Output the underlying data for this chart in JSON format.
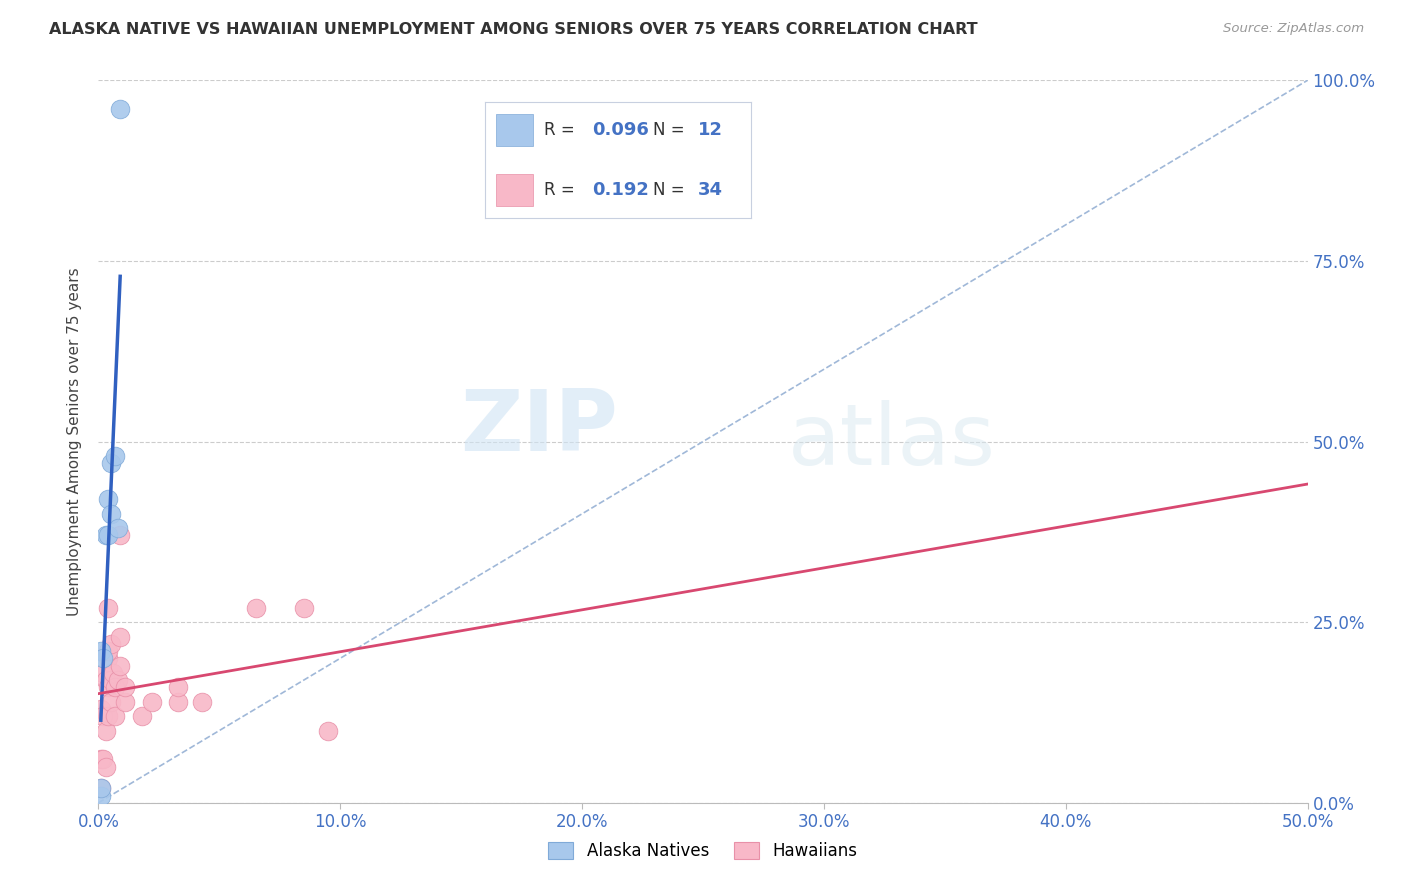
{
  "title": "ALASKA NATIVE VS HAWAIIAN UNEMPLOYMENT AMONG SENIORS OVER 75 YEARS CORRELATION CHART",
  "source": "Source: ZipAtlas.com",
  "ylabel": "Unemployment Among Seniors over 75 years",
  "xlim": [
    0.0,
    0.5
  ],
  "ylim": [
    0.0,
    1.0
  ],
  "xticks": [
    0.0,
    0.1,
    0.2,
    0.3,
    0.4,
    0.5
  ],
  "yticks": [
    0.0,
    0.25,
    0.5,
    0.75,
    1.0
  ],
  "diagonal_color": "#a0b8d8",
  "alaska_natives": {
    "R": 0.096,
    "N": 12,
    "scatter_color": "#a8c8ec",
    "edge_color": "#80aad8",
    "trend_color": "#3060c0",
    "points_x": [
      0.001,
      0.001,
      0.001,
      0.002,
      0.003,
      0.004,
      0.004,
      0.005,
      0.005,
      0.007,
      0.008,
      0.009
    ],
    "points_y": [
      0.01,
      0.02,
      0.21,
      0.2,
      0.37,
      0.37,
      0.42,
      0.4,
      0.47,
      0.48,
      0.38,
      0.96
    ]
  },
  "hawaiians": {
    "R": 0.192,
    "N": 34,
    "scatter_color": "#f8b8c8",
    "edge_color": "#e890a8",
    "trend_color": "#d84870",
    "points_x": [
      0.001,
      0.001,
      0.001,
      0.002,
      0.002,
      0.002,
      0.003,
      0.003,
      0.003,
      0.004,
      0.004,
      0.004,
      0.004,
      0.004,
      0.005,
      0.005,
      0.005,
      0.006,
      0.007,
      0.007,
      0.008,
      0.009,
      0.009,
      0.009,
      0.011,
      0.011,
      0.018,
      0.022,
      0.033,
      0.033,
      0.043,
      0.065,
      0.085,
      0.095
    ],
    "points_y": [
      0.02,
      0.06,
      0.13,
      0.06,
      0.12,
      0.18,
      0.05,
      0.1,
      0.17,
      0.12,
      0.16,
      0.2,
      0.21,
      0.27,
      0.14,
      0.17,
      0.22,
      0.18,
      0.12,
      0.16,
      0.17,
      0.19,
      0.23,
      0.37,
      0.14,
      0.16,
      0.12,
      0.14,
      0.14,
      0.16,
      0.14,
      0.27,
      0.27,
      0.1
    ]
  },
  "watermark_zip": "ZIP",
  "watermark_atlas": "atlas",
  "background_color": "#ffffff",
  "grid_color": "#cccccc",
  "legend_box_color": "#f0f4fc",
  "legend_border_color": "#c0c8d8"
}
